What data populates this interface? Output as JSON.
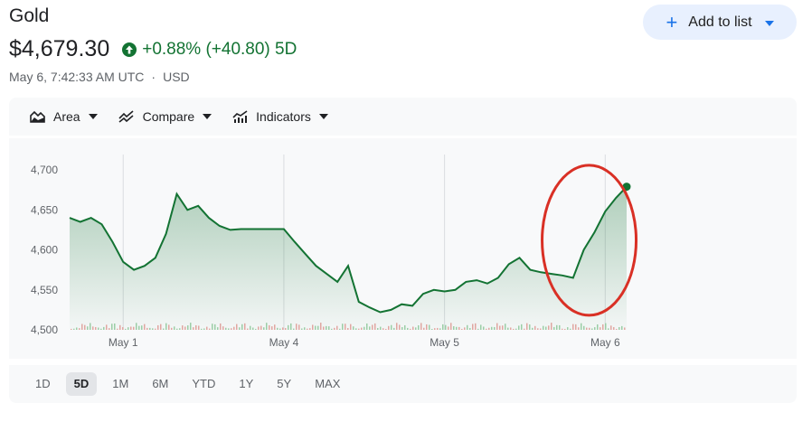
{
  "header": {
    "title": "Gold",
    "price": "$4,679.30",
    "change": "+0.88% (+40.80) 5D",
    "timestamp": "May 6, 7:42:33 AM UTC",
    "separator": "·",
    "currency": "USD",
    "add_to_list": "Add to list"
  },
  "toolbar": {
    "chart_type": "Area",
    "compare": "Compare",
    "indicators": "Indicators"
  },
  "ranges": [
    {
      "label": "1D",
      "active": false
    },
    {
      "label": "5D",
      "active": true
    },
    {
      "label": "1M",
      "active": false
    },
    {
      "label": "6M",
      "active": false
    },
    {
      "label": "YTD",
      "active": false
    },
    {
      "label": "1Y",
      "active": false
    },
    {
      "label": "5Y",
      "active": false
    },
    {
      "label": "MAX",
      "active": false
    }
  ],
  "colors": {
    "line": "#137333",
    "positive": "#137333",
    "accent": "#1a73e8",
    "annotation": "#d93025"
  },
  "chart_data": {
    "type": "area",
    "ylim": [
      4500,
      4700
    ],
    "y_ticks": [
      "4,700",
      "4,650",
      "4,600",
      "4,550",
      "4,500"
    ],
    "y_tick_values": [
      4700,
      4650,
      4600,
      4550,
      4500
    ],
    "x_ticks": [
      "May 1",
      "May 4",
      "May 5",
      "May 6"
    ],
    "x_tick_positions": [
      0.5,
      3.5,
      6.5,
      9.5
    ],
    "xlim": [
      -0.5,
      9.9
    ],
    "series": [
      {
        "x": [
          -0.5,
          -0.3,
          -0.1,
          0.1,
          0.3,
          0.5,
          0.7,
          0.9,
          1.1,
          1.3,
          1.5,
          1.7,
          1.9,
          2.1,
          2.3,
          2.5,
          2.7,
          2.9,
          3.1,
          3.3,
          3.5,
          3.7,
          3.9,
          4.1,
          4.3,
          4.5,
          4.7,
          4.9,
          5.1,
          5.3,
          5.5,
          5.7,
          5.9,
          6.1,
          6.3,
          6.5,
          6.7,
          6.9,
          7.1,
          7.3,
          7.5,
          7.7,
          7.9,
          8.1,
          8.3,
          8.5,
          8.7,
          8.9,
          9.1,
          9.3,
          9.5,
          9.7,
          9.9
        ],
        "values": [
          4640,
          4635,
          4640,
          4632,
          4610,
          4585,
          4575,
          4580,
          4590,
          4620,
          4670,
          4650,
          4655,
          4640,
          4630,
          4625,
          4626,
          4626,
          4626,
          4626,
          4626,
          4610,
          4595,
          4580,
          4570,
          4560,
          4580,
          4535,
          4528,
          4522,
          4525,
          4532,
          4530,
          4545,
          4550,
          4548,
          4550,
          4560,
          4562,
          4558,
          4565,
          4582,
          4590,
          4575,
          4572,
          4570,
          4568,
          4565,
          4600,
          4622,
          4648,
          4665,
          4679
        ]
      }
    ],
    "annotations": [
      "red circle highlighting the May 6 rally"
    ]
  }
}
